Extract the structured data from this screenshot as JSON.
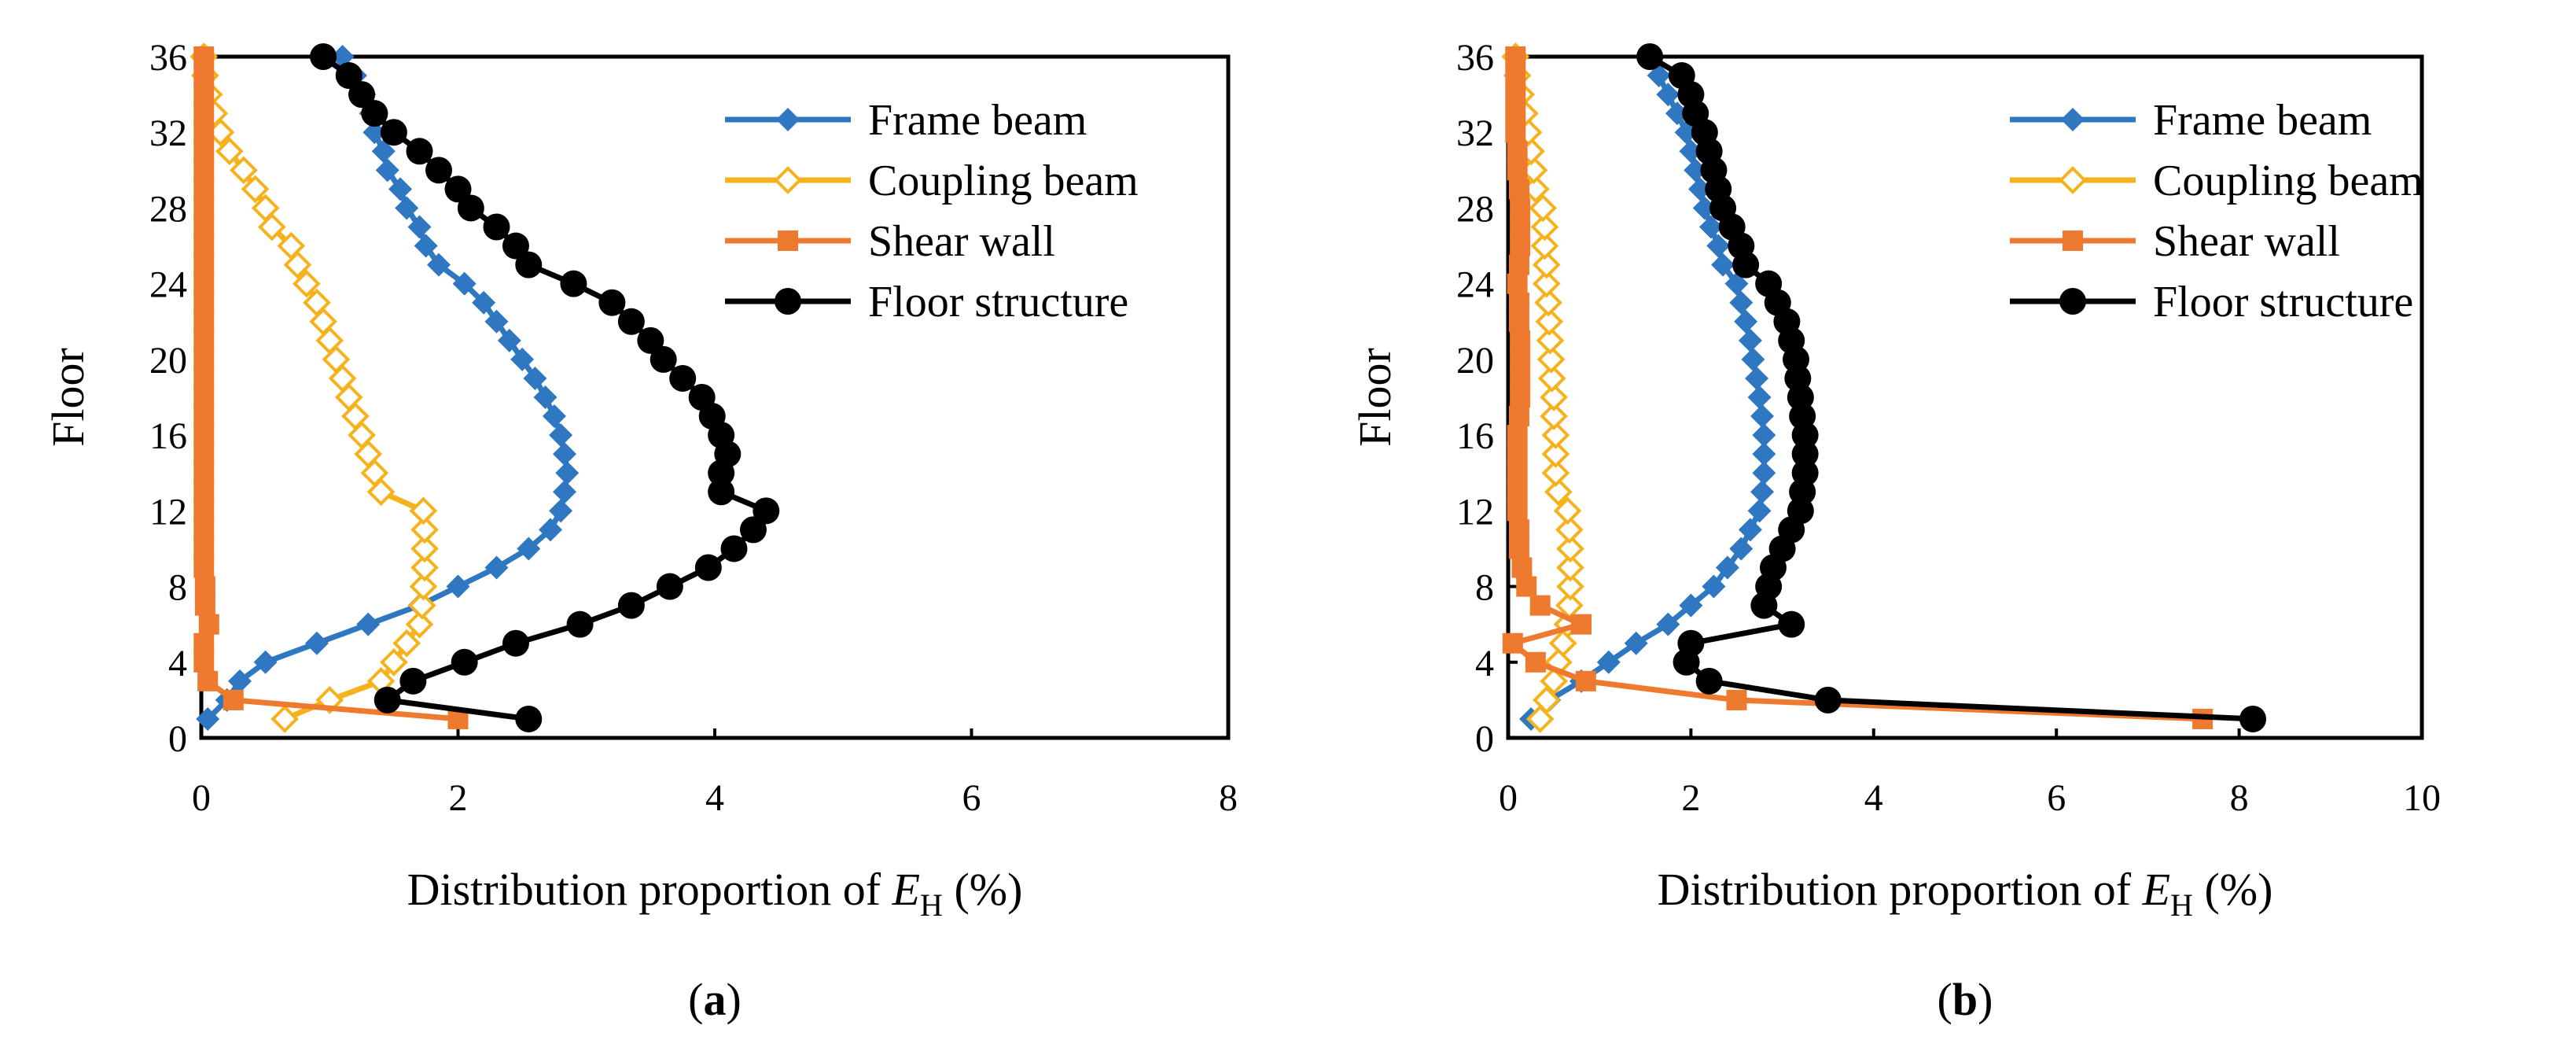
{
  "colors": {
    "frame_beam": "#2F78C1",
    "coupling_beam": "#F5B21C",
    "shear_wall": "#EE7A30",
    "floor_structure": "#000000"
  },
  "chart_data": [
    {
      "type": "line",
      "panel_label": "(a)",
      "panel_label_letter": "a",
      "xlabel": "Distribution proportion of E_H (%)",
      "xlabel_parts": {
        "prefix": "Distribution proportion of ",
        "symbol": "E",
        "subscript": "H",
        "suffix": " (%)"
      },
      "ylabel": "Floor",
      "xlim": [
        0,
        8
      ],
      "ylim": [
        0,
        36
      ],
      "xticks": [
        "0",
        "2",
        "4",
        "6",
        "8"
      ],
      "yticks": [
        "0",
        "4",
        "8",
        "12",
        "16",
        "20",
        "24",
        "28",
        "32",
        "36"
      ],
      "legend_position": "top-right",
      "y": [
        1,
        2,
        3,
        4,
        5,
        6,
        7,
        8,
        9,
        10,
        11,
        12,
        13,
        14,
        15,
        16,
        17,
        18,
        19,
        20,
        21,
        22,
        23,
        24,
        25,
        26,
        27,
        28,
        29,
        30,
        31,
        32,
        33,
        34,
        35,
        36
      ],
      "series": [
        {
          "name": "Frame beam",
          "marker": "diamond",
          "values": [
            0.05,
            0.2,
            0.3,
            0.5,
            0.9,
            1.3,
            1.7,
            2.0,
            2.3,
            2.55,
            2.72,
            2.8,
            2.83,
            2.85,
            2.83,
            2.8,
            2.75,
            2.68,
            2.6,
            2.5,
            2.4,
            2.3,
            2.2,
            2.05,
            1.85,
            1.75,
            1.7,
            1.6,
            1.55,
            1.45,
            1.42,
            1.35,
            1.32,
            1.27,
            1.2,
            1.1
          ]
        },
        {
          "name": "Coupling beam",
          "marker": "diamond-open",
          "values": [
            0.65,
            1.0,
            1.4,
            1.5,
            1.6,
            1.7,
            1.72,
            1.73,
            1.74,
            1.74,
            1.74,
            1.73,
            1.4,
            1.35,
            1.3,
            1.25,
            1.2,
            1.15,
            1.1,
            1.05,
            1.0,
            0.95,
            0.9,
            0.82,
            0.75,
            0.7,
            0.55,
            0.5,
            0.42,
            0.33,
            0.22,
            0.15,
            0.1,
            0.06,
            0.03,
            0.02
          ]
        },
        {
          "name": "Shear wall",
          "marker": "square",
          "values": [
            2.0,
            0.25,
            0.05,
            0.02,
            0.02,
            0.06,
            0.03,
            0.03,
            0.02,
            0.02,
            0.02,
            0.02,
            0.02,
            0.02,
            0.02,
            0.02,
            0.02,
            0.02,
            0.02,
            0.02,
            0.02,
            0.02,
            0.02,
            0.02,
            0.02,
            0.02,
            0.02,
            0.02,
            0.02,
            0.02,
            0.02,
            0.02,
            0.02,
            0.02,
            0.02,
            0.02
          ]
        },
        {
          "name": "Floor structure",
          "marker": "circle",
          "values": [
            2.55,
            1.45,
            1.65,
            2.05,
            2.45,
            2.95,
            3.35,
            3.65,
            3.95,
            4.15,
            4.3,
            4.4,
            4.05,
            4.05,
            4.1,
            4.05,
            3.98,
            3.9,
            3.75,
            3.6,
            3.5,
            3.35,
            3.2,
            2.9,
            2.55,
            2.45,
            2.3,
            2.1,
            2.0,
            1.85,
            1.7,
            1.5,
            1.35,
            1.25,
            1.15,
            0.95
          ]
        }
      ]
    },
    {
      "type": "line",
      "panel_label": "(b)",
      "panel_label_letter": "b",
      "xlabel": "Distribution proportion of E_H (%)",
      "xlabel_parts": {
        "prefix": "Distribution proportion of ",
        "symbol": "E",
        "subscript": "H",
        "suffix": " (%)"
      },
      "ylabel": "Floor",
      "xlim": [
        0,
        10
      ],
      "ylim": [
        0,
        36
      ],
      "xticks": [
        "0",
        "2",
        "4",
        "6",
        "8",
        "10"
      ],
      "yticks": [
        "0",
        "4",
        "8",
        "12",
        "16",
        "20",
        "24",
        "28",
        "32",
        "36"
      ],
      "legend_position": "top-right",
      "y": [
        1,
        2,
        3,
        4,
        5,
        6,
        7,
        8,
        9,
        10,
        11,
        12,
        13,
        14,
        15,
        16,
        17,
        18,
        19,
        20,
        21,
        22,
        23,
        24,
        25,
        26,
        27,
        28,
        29,
        30,
        31,
        32,
        33,
        34,
        35,
        36
      ],
      "series": [
        {
          "name": "Frame beam",
          "marker": "diamond",
          "values": [
            0.25,
            0.45,
            0.8,
            1.1,
            1.4,
            1.75,
            2.0,
            2.25,
            2.4,
            2.55,
            2.65,
            2.75,
            2.78,
            2.8,
            2.8,
            2.8,
            2.78,
            2.75,
            2.72,
            2.68,
            2.65,
            2.6,
            2.55,
            2.5,
            2.35,
            2.3,
            2.22,
            2.15,
            2.1,
            2.05,
            2.0,
            1.95,
            1.85,
            1.75,
            1.65,
            1.55
          ]
        },
        {
          "name": "Coupling beam",
          "marker": "diamond-open",
          "values": [
            0.35,
            0.42,
            0.5,
            0.55,
            0.6,
            0.65,
            0.67,
            0.68,
            0.68,
            0.68,
            0.67,
            0.65,
            0.55,
            0.52,
            0.52,
            0.52,
            0.5,
            0.5,
            0.48,
            0.47,
            0.46,
            0.45,
            0.44,
            0.42,
            0.42,
            0.4,
            0.4,
            0.38,
            0.3,
            0.28,
            0.25,
            0.22,
            0.18,
            0.14,
            0.1,
            0.08
          ]
        },
        {
          "name": "Shear wall",
          "marker": "square",
          "values": [
            7.6,
            2.5,
            0.85,
            0.3,
            0.05,
            0.8,
            0.35,
            0.2,
            0.15,
            0.12,
            0.12,
            0.1,
            0.1,
            0.1,
            0.1,
            0.1,
            0.12,
            0.13,
            0.13,
            0.13,
            0.13,
            0.12,
            0.12,
            0.1,
            0.12,
            0.13,
            0.13,
            0.13,
            0.12,
            0.1,
            0.1,
            0.08,
            0.08,
            0.08,
            0.08,
            0.08
          ]
        },
        {
          "name": "Floor structure",
          "marker": "circle",
          "values": [
            8.15,
            3.5,
            2.2,
            1.95,
            2.0,
            3.1,
            2.8,
            2.85,
            2.9,
            3.0,
            3.1,
            3.2,
            3.22,
            3.25,
            3.25,
            3.25,
            3.22,
            3.2,
            3.17,
            3.15,
            3.1,
            3.05,
            2.95,
            2.85,
            2.6,
            2.55,
            2.45,
            2.35,
            2.3,
            2.25,
            2.2,
            2.15,
            2.05,
            2.0,
            1.9,
            1.55
          ]
        }
      ]
    }
  ]
}
